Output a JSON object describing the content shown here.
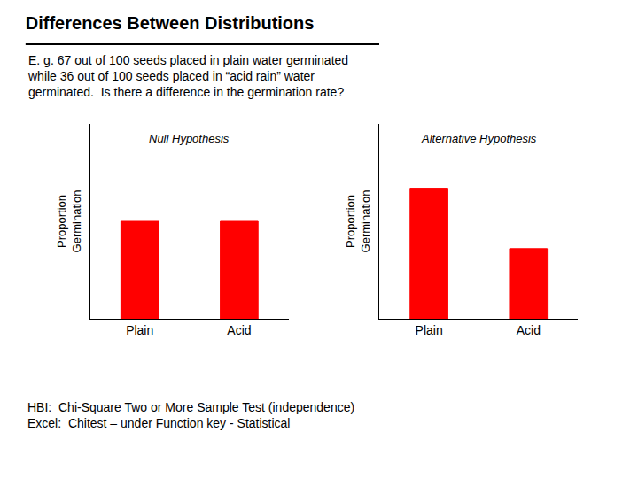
{
  "title": "Differences Between Distributions",
  "subtitle": [
    "E. g. 67 out of 100 seeds placed in plain water germinated",
    "while 36 out of 100 seeds placed in “acid rain” water",
    "germinated.  Is there a difference in the germination rate?"
  ],
  "annotations": [
    "HBI:  Chi-Square Two or More Sample Test (independence)",
    "Excel:  Chitest – under Function key - Statistical"
  ],
  "chart_data": [
    {
      "type": "bar",
      "title": "Null Hypothesis",
      "categories": [
        "Plain",
        "Acid"
      ],
      "values": [
        0.5,
        0.5
      ],
      "color": "#ff0000",
      "ylabel": "Proportion\nGermination",
      "ylim": [
        0,
        1.0
      ],
      "yticks": [],
      "tick_labels": "x",
      "grid": false
    },
    {
      "type": "bar",
      "title": "Alternative Hypothesis",
      "categories": [
        "Plain",
        "Acid"
      ],
      "values": [
        0.67,
        0.36
      ],
      "color": "#ff0000",
      "ylabel": "Proportion\nGermination",
      "ylim": [
        0,
        1.0
      ],
      "yticks": [],
      "tick_labels": "x",
      "grid": false
    }
  ]
}
